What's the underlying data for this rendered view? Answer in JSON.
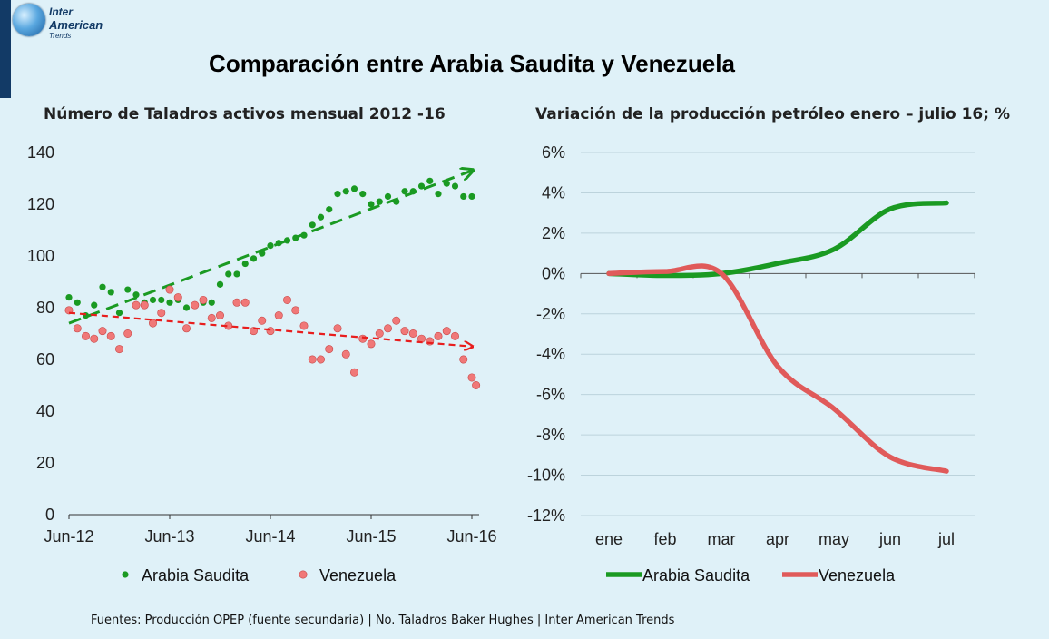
{
  "logo": {
    "line1": "Inter",
    "line2": "American",
    "line3": "Trends"
  },
  "main_title": "Comparación entre Arabia Saudita y Venezuela",
  "footer": "Fuentes: Producción OPEP (fuente secundaria) | No. Taladros Baker Hughes | Inter American Trends",
  "colors": {
    "saudi": "#1a9a22",
    "venezuela": "#e05a5a",
    "venezuela_dot": "#f07878",
    "trend_red": "#e81e1e"
  },
  "chart_data": [
    {
      "type": "scatter",
      "title": "Número de Taladros activos mensual  2012 -16",
      "x_tick_labels": [
        "Jun-12",
        "Jun-13",
        "Jun-14",
        "Jun-15",
        "Jun-16"
      ],
      "y_tick_labels": [
        "0",
        "20",
        "40",
        "60",
        "80",
        "100",
        "120",
        "140"
      ],
      "ylim": [
        0,
        140
      ],
      "x_range_months": [
        0,
        48
      ],
      "grid": false,
      "legend_position": "bottom",
      "series": [
        {
          "name": "Arabia Saudita",
          "x": [
            0,
            1,
            2,
            3,
            4,
            5,
            6,
            7,
            8,
            9,
            10,
            11,
            12,
            13,
            14,
            15,
            16,
            17,
            18,
            19,
            20,
            21,
            22,
            23,
            24,
            25,
            26,
            27,
            28,
            29,
            30,
            31,
            32,
            33,
            34,
            35,
            36,
            37,
            38,
            39,
            40,
            41,
            42,
            43,
            44,
            45,
            46,
            47,
            48
          ],
          "values": [
            84,
            82,
            77,
            81,
            88,
            86,
            78,
            87,
            85,
            82,
            83,
            83,
            82,
            83,
            80,
            81,
            82,
            82,
            89,
            93,
            93,
            97,
            99,
            101,
            104,
            105,
            106,
            107,
            108,
            112,
            115,
            118,
            124,
            125,
            126,
            124,
            120,
            121,
            123,
            121,
            125,
            125,
            127,
            129,
            124,
            128,
            127,
            123,
            123
          ],
          "trend": {
            "from": [
              0,
              74
            ],
            "to": [
              48,
              133
            ]
          }
        },
        {
          "name": "Venezuela",
          "x": [
            0,
            1,
            2,
            3,
            4,
            5,
            6,
            7,
            8,
            9,
            10,
            11,
            12,
            13,
            14,
            15,
            16,
            17,
            18,
            19,
            20,
            21,
            22,
            23,
            24,
            25,
            26,
            27,
            28,
            29,
            30,
            31,
            32,
            33,
            34,
            35,
            36,
            37,
            38,
            39,
            40,
            41,
            42,
            43,
            44,
            45,
            46,
            47,
            48
          ],
          "values": [
            79,
            72,
            69,
            68,
            71,
            69,
            64,
            70,
            81,
            81,
            74,
            78,
            87,
            84,
            72,
            81,
            83,
            76,
            77,
            73,
            82,
            82,
            71,
            75,
            71,
            77,
            83,
            79,
            73,
            60,
            60,
            64,
            72,
            62,
            55,
            68,
            66,
            70,
            72,
            75,
            71,
            70,
            68,
            67,
            69,
            71,
            69,
            60,
            53
          ],
          "extra_points": [
            [
              48.5,
              50
            ]
          ],
          "trend": {
            "from": [
              0,
              78
            ],
            "to": [
              48,
              65
            ]
          }
        }
      ]
    },
    {
      "type": "line",
      "title": "Variación de la producción petróleo enero – julio 16; %",
      "categories": [
        "ene",
        "feb",
        "mar",
        "apr",
        "may",
        "jun",
        "jul"
      ],
      "y_tick_labels": [
        "6%",
        "4%",
        "2%",
        "0%",
        "-2%",
        "-4%",
        "-6%",
        "-8%",
        "-10%",
        "-12%"
      ],
      "ylim": [
        -12,
        6
      ],
      "grid": true,
      "legend_position": "bottom",
      "series": [
        {
          "name": "Arabia Saudita",
          "values": [
            0,
            -0.1,
            0,
            0.5,
            1.2,
            3.2,
            3.5
          ]
        },
        {
          "name": "Venezuela",
          "values": [
            0,
            0.1,
            0,
            -4.6,
            -6.7,
            -9.1,
            -9.8
          ]
        }
      ]
    }
  ]
}
